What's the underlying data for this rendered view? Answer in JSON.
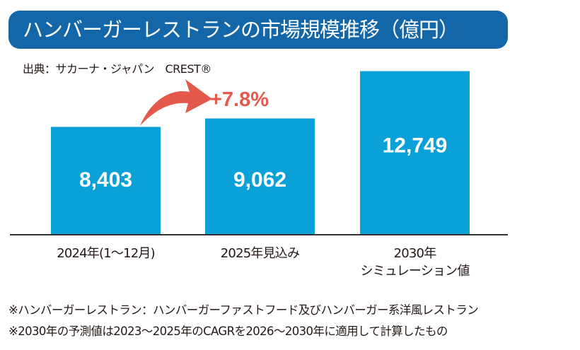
{
  "chart_data": {
    "type": "bar",
    "title": "ハンバーガーレストランの市場規模推移（億円）",
    "source": "出典：サカーナ・ジャパン　CREST®",
    "categories": [
      "2024年(1〜12月)",
      "2025年見込み",
      "2030年\nシミュレーション値"
    ],
    "category_lines": [
      [
        "2024年(1〜12月)"
      ],
      [
        "2025年見込み"
      ],
      [
        "2030年",
        "シミュレーション値"
      ]
    ],
    "values": [
      8403,
      9062,
      12749
    ],
    "data_labels": [
      "8,403",
      "9,062",
      "12,749"
    ],
    "annotation": "+7.8%",
    "ylim": [
      0,
      13500
    ],
    "grid": false,
    "bar_color": "#0aa0d8",
    "annotation_color": "#e35a4c",
    "title_bg_color": "#1367a8"
  },
  "notes": [
    "※ハンバーガーレストラン：ハンバーガーファストフード及びハンバーガー系洋風レストラン",
    "※2030年の予測値は2023〜2025年のCAGRを2026〜2030年に適用して計算したもの"
  ]
}
